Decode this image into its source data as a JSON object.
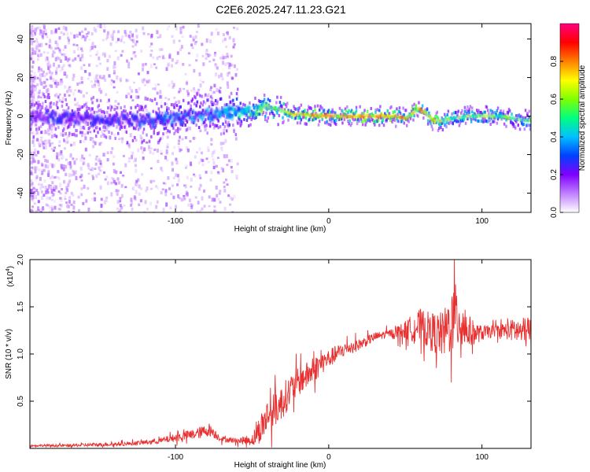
{
  "figure_title": "C2E6.2025.247.11.23.G21",
  "chart_data": [
    {
      "type": "heatmap",
      "title": "C2E6.2025.247.11.23.G21",
      "xlabel": "Height of straight line (km)",
      "ylabel": "Frequency (Hz)",
      "xlim": [
        -195,
        132
      ],
      "ylim": [
        -50,
        48
      ],
      "xticks": [
        -100,
        0,
        100
      ],
      "yticks": [
        -40,
        -20,
        0,
        20,
        40
      ],
      "grid": false,
      "colorbar": {
        "label": "Normalized spectral amplitude",
        "range": [
          0,
          1
        ],
        "ticks": [
          0.0,
          0.2,
          0.4,
          0.6,
          0.8
        ],
        "colormap": [
          "#ffffff",
          "#c080ff",
          "#8000ff",
          "#0040ff",
          "#00c0ff",
          "#00ff80",
          "#80ff00",
          "#ffff00",
          "#ff8000",
          "#ff0000",
          "#ff0080"
        ]
      },
      "ridge_frequency": [
        {
          "x": -190,
          "y": 0
        },
        {
          "x": -150,
          "y": -2
        },
        {
          "x": -110,
          "y": -2
        },
        {
          "x": -90,
          "y": 0
        },
        {
          "x": -70,
          "y": 2
        },
        {
          "x": -55,
          "y": 2
        },
        {
          "x": -45,
          "y": 4
        },
        {
          "x": -35,
          "y": 4
        },
        {
          "x": -25,
          "y": 1
        },
        {
          "x": 0,
          "y": 0
        },
        {
          "x": 40,
          "y": 0
        },
        {
          "x": 50,
          "y": -1
        },
        {
          "x": 58,
          "y": 4
        },
        {
          "x": 65,
          "y": 0
        },
        {
          "x": 68,
          "y": -3
        },
        {
          "x": 75,
          "y": -2
        },
        {
          "x": 90,
          "y": 0
        },
        {
          "x": 110,
          "y": 0
        },
        {
          "x": 125,
          "y": -2
        },
        {
          "x": 132,
          "y": -2
        }
      ],
      "ridge_peak_amplitude": [
        {
          "x": -190,
          "y": 0.25
        },
        {
          "x": -120,
          "y": 0.3
        },
        {
          "x": -70,
          "y": 0.4
        },
        {
          "x": -45,
          "y": 0.55
        },
        {
          "x": -25,
          "y": 0.75
        },
        {
          "x": 0,
          "y": 0.9
        },
        {
          "x": 50,
          "y": 0.9
        },
        {
          "x": 80,
          "y": 0.7
        },
        {
          "x": 132,
          "y": 0.6
        }
      ]
    },
    {
      "type": "line",
      "title": "",
      "xlabel": "Height of straight line (km)",
      "ylabel": "SNR (10 * v/v)",
      "y_multiplier": "(x10^4)",
      "xlim": [
        -195,
        132
      ],
      "ylim": [
        0,
        2.0
      ],
      "xticks": [
        -100,
        0,
        100
      ],
      "yticks": [
        0.5,
        1.0,
        1.5,
        2.0
      ],
      "color": "#e83030",
      "grid": false,
      "series": [
        {
          "x": [
            -195,
            -170,
            -150,
            -130,
            -110,
            -95,
            -85,
            -78,
            -70,
            -60,
            -50,
            -45,
            -40,
            -36,
            -32,
            -28,
            -20,
            -12,
            -5,
            0,
            10,
            20,
            30,
            40,
            50,
            55,
            60,
            65,
            70,
            75,
            80,
            85,
            90,
            95,
            100,
            110,
            120,
            132
          ],
          "y": [
            0.03,
            0.03,
            0.04,
            0.05,
            0.08,
            0.13,
            0.16,
            0.2,
            0.1,
            0.08,
            0.09,
            0.2,
            0.35,
            0.4,
            0.45,
            0.55,
            0.7,
            0.8,
            0.9,
            0.95,
            1.05,
            1.1,
            1.18,
            1.22,
            1.25,
            1.28,
            1.3,
            1.25,
            1.22,
            1.2,
            1.35,
            1.4,
            1.25,
            1.22,
            1.22,
            1.25,
            1.25,
            1.22
          ],
          "spread": [
            0.01,
            0.015,
            0.02,
            0.02,
            0.03,
            0.05,
            0.06,
            0.07,
            0.03,
            0.03,
            0.06,
            0.15,
            0.18,
            0.18,
            0.18,
            0.18,
            0.15,
            0.14,
            0.12,
            0.1,
            0.08,
            0.06,
            0.05,
            0.04,
            0.1,
            0.15,
            0.18,
            0.2,
            0.22,
            0.25,
            0.35,
            0.38,
            0.2,
            0.12,
            0.08,
            0.06,
            0.12,
            0.18
          ]
        }
      ]
    }
  ]
}
